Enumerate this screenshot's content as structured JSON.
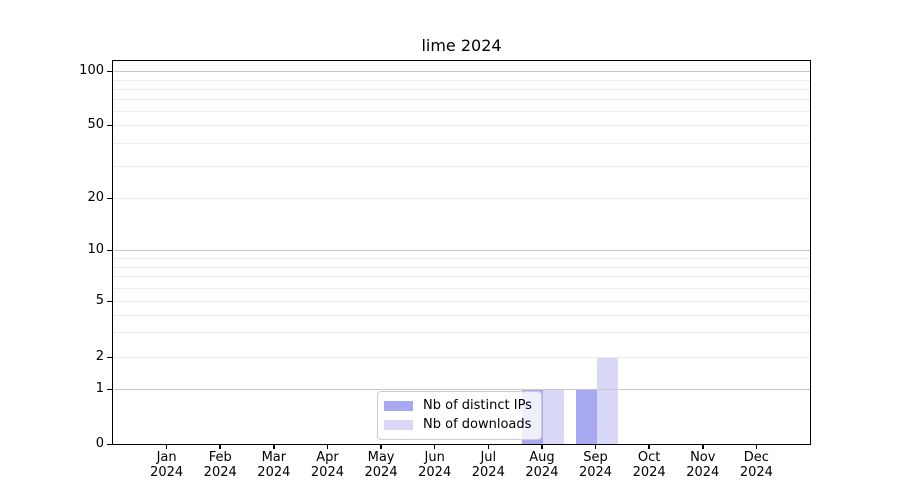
{
  "title": "lime 2024",
  "chart_data": {
    "type": "bar",
    "title": "lime 2024",
    "categories": [
      "Jan 2024",
      "Feb 2024",
      "Mar 2024",
      "Apr 2024",
      "May 2024",
      "Jun 2024",
      "Jul 2024",
      "Aug 2024",
      "Sep 2024",
      "Oct 2024",
      "Nov 2024",
      "Dec 2024"
    ],
    "series": [
      {
        "name": "Nb of distinct IPs",
        "color": "#a9a9f3",
        "values": [
          0,
          0,
          0,
          0,
          0,
          0,
          0,
          1,
          1,
          0,
          0,
          0
        ]
      },
      {
        "name": "Nb of downloads",
        "color": "#d9d9f7",
        "values": [
          0,
          0,
          0,
          0,
          0,
          0,
          0,
          1,
          2,
          0,
          0,
          0
        ]
      }
    ],
    "xlabel": "",
    "ylabel": "",
    "yscale": "log above 1, linear segment 0-1",
    "y_tick_values": [
      0,
      1,
      2,
      5,
      10,
      20,
      50,
      100
    ],
    "grid": true,
    "grid_on_top_of_bars": true,
    "legend_position": "inside axes, lower center"
  },
  "x_axis": {
    "months": [
      "Jan",
      "Feb",
      "Mar",
      "Apr",
      "May",
      "Jun",
      "Jul",
      "Aug",
      "Sep",
      "Oct",
      "Nov",
      "Dec"
    ],
    "year": "2024"
  },
  "y_axis": {
    "tick_labels": [
      "0",
      "1",
      "2",
      "5",
      "10",
      "20",
      "50",
      "100"
    ]
  },
  "legend": {
    "items": [
      {
        "label": "Nb of distinct IPs",
        "color": "#a9a9f3"
      },
      {
        "label": "Nb of downloads",
        "color": "#d9d9f7"
      }
    ]
  },
  "colors": {
    "distinct_ips": "#a9a9f3",
    "downloads": "#d9d9f7",
    "major_grid": "#c8c8c8",
    "minor_grid": "#ececec",
    "spine": "#000000"
  }
}
